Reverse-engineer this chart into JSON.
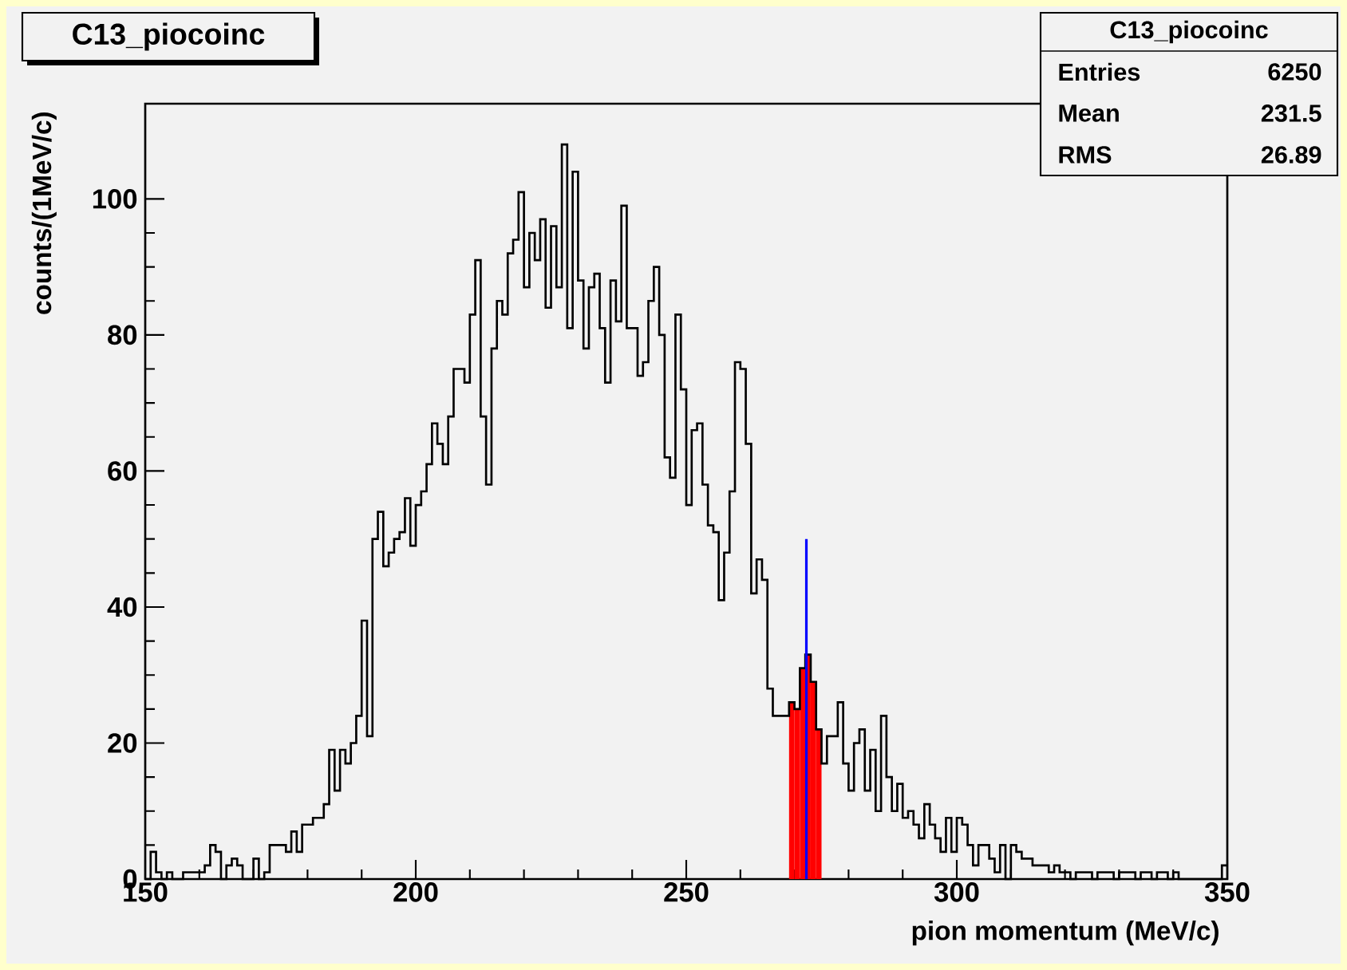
{
  "chart_data": {
    "type": "histogram",
    "title": "C13_piocoinc",
    "xlabel": "pion momentum (MeV/c)",
    "ylabel": "counts/(1MeV/c)",
    "annotations": [
      "C13_piocoinc",
      "Entries",
      "6250",
      "Mean",
      "231.5",
      "RMS",
      "26.89"
    ],
    "xlim": [
      150,
      350
    ],
    "ylim": [
      0,
      114
    ],
    "xticks": [
      150,
      200,
      250,
      300,
      350
    ],
    "yticks": [
      0,
      20,
      40,
      60,
      80,
      100
    ],
    "series": [
      {
        "color": "#000000",
        "bins": [
          150,
          151,
          152,
          153,
          154,
          155,
          156,
          157,
          158,
          159,
          160,
          161,
          162,
          163,
          164,
          165,
          166,
          167,
          168,
          169,
          170,
          171,
          172,
          173,
          174,
          175,
          176,
          177,
          178,
          179,
          180,
          181,
          182,
          183,
          184,
          185,
          186,
          187,
          188,
          189,
          190,
          191,
          192,
          193,
          194,
          195,
          196,
          197,
          198,
          199,
          200,
          201,
          202,
          203,
          204,
          205,
          206,
          207,
          208,
          209,
          210,
          211,
          212,
          213,
          214,
          215,
          216,
          217,
          218,
          219,
          220,
          221,
          222,
          223,
          224,
          225,
          226,
          227,
          228,
          229,
          230,
          231,
          232,
          233,
          234,
          235,
          236,
          237,
          238,
          239,
          240,
          241,
          242,
          243,
          244,
          245,
          246,
          247,
          248,
          249,
          250,
          251,
          252,
          253,
          254,
          255,
          256,
          257,
          258,
          259,
          260,
          261,
          262,
          263,
          264,
          265,
          266,
          267,
          268,
          269,
          270,
          271,
          272,
          273,
          274,
          275,
          276,
          277,
          278,
          279,
          280,
          281,
          282,
          283,
          284,
          285,
          286,
          287,
          288,
          289,
          290,
          291,
          292,
          293,
          294,
          295,
          296,
          297,
          298,
          299,
          300,
          301,
          302,
          303,
          304,
          305,
          306,
          307,
          308,
          309,
          310,
          311,
          312,
          313,
          314,
          315,
          316,
          317,
          318,
          319,
          320,
          321,
          322,
          323,
          324,
          325,
          326,
          327,
          328,
          329,
          330,
          331,
          332,
          333,
          334,
          335,
          336,
          337,
          338,
          339,
          340,
          341,
          342,
          343,
          344,
          345,
          346,
          347,
          348,
          349,
          350
        ],
        "values": [
          0,
          4,
          1,
          0,
          1,
          0,
          0,
          1,
          1,
          1,
          1,
          2,
          5,
          4,
          0,
          2,
          3,
          2,
          0,
          0,
          3,
          0,
          1,
          5,
          5,
          5,
          4,
          7,
          4,
          8,
          8,
          9,
          9,
          11,
          19,
          13,
          19,
          17,
          20,
          24,
          38,
          21,
          50,
          54,
          46,
          48,
          50,
          51,
          56,
          49,
          55,
          57,
          61,
          67,
          64,
          61,
          68,
          75,
          75,
          73,
          83,
          91,
          68,
          58,
          78,
          85,
          83,
          92,
          94,
          101,
          87,
          95,
          91,
          97,
          84,
          96,
          87,
          108,
          81,
          104,
          88,
          78,
          87,
          89,
          81,
          73,
          88,
          82,
          99,
          81,
          81,
          74,
          76,
          85,
          90,
          80,
          62,
          59,
          83,
          72,
          55,
          66,
          67,
          58,
          52,
          51,
          41,
          48,
          57,
          76,
          75,
          64,
          42,
          47,
          44,
          28,
          24,
          24,
          24,
          26,
          25,
          31,
          33,
          29,
          22,
          17,
          21,
          21,
          26,
          17,
          13,
          20,
          22,
          13,
          19,
          10,
          24,
          15,
          10,
          14,
          9,
          10,
          8,
          6,
          11,
          8,
          6,
          4,
          9,
          4,
          9,
          8,
          5,
          2,
          5,
          5,
          3,
          1,
          5,
          0,
          5,
          4,
          3,
          3,
          2,
          2,
          2,
          1,
          2,
          1,
          1,
          0,
          1,
          1,
          1,
          0,
          1,
          1,
          1,
          0,
          1,
          1,
          1,
          0,
          1,
          1,
          0,
          1,
          1,
          0,
          1,
          0,
          0,
          0,
          0,
          0,
          0,
          0,
          0,
          2
        ]
      },
      {
        "type": "bar",
        "color": "#ff0000",
        "x": [
          269.5,
          270.5,
          271.5,
          272.5,
          273.5,
          274.5
        ],
        "values": [
          26,
          25,
          31,
          33,
          29,
          22
        ]
      },
      {
        "type": "line",
        "color": "#0000ff",
        "x": [
          272.2,
          272.2
        ],
        "values": [
          0,
          50
        ]
      }
    ]
  }
}
